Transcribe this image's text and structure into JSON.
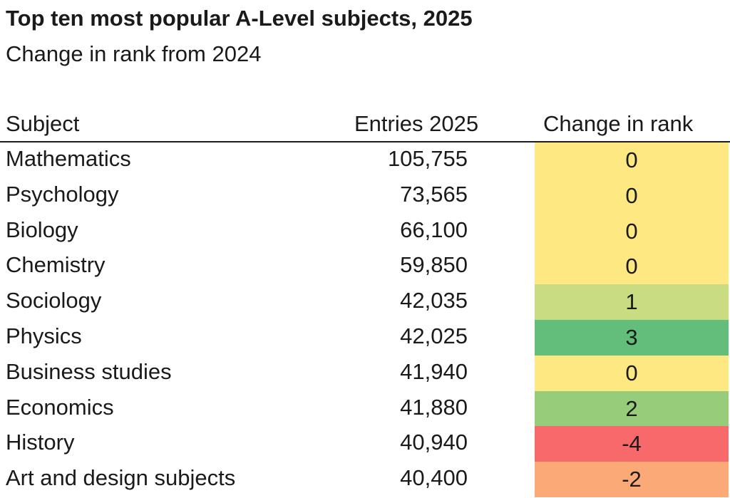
{
  "title": "Top ten most popular A-Level subjects, 2025",
  "subtitle": "Change in rank from 2024",
  "colors": {
    "zero": "#fde882",
    "plus1": "#cadc82",
    "plus2": "#97cd7a",
    "plus3": "#63be7b",
    "minus2": "#fbaa77",
    "minus4": "#f8696b"
  },
  "chart_data": {
    "type": "table",
    "columns": [
      "Subject",
      "Entries 2025",
      "Change in rank"
    ],
    "rows": [
      {
        "subject": "Mathematics",
        "entries": "105,755",
        "change": "0",
        "color": "#fde882"
      },
      {
        "subject": "Psychology",
        "entries": "73,565",
        "change": "0",
        "color": "#fde882"
      },
      {
        "subject": "Biology",
        "entries": "66,100",
        "change": "0",
        "color": "#fde882"
      },
      {
        "subject": "Chemistry",
        "entries": "59,850",
        "change": "0",
        "color": "#fde882"
      },
      {
        "subject": "Sociology",
        "entries": "42,035",
        "change": "1",
        "color": "#cadc82"
      },
      {
        "subject": "Physics",
        "entries": "42,025",
        "change": "3",
        "color": "#63be7b"
      },
      {
        "subject": "Business studies",
        "entries": "41,940",
        "change": "0",
        "color": "#fde882"
      },
      {
        "subject": "Economics",
        "entries": "41,880",
        "change": "2",
        "color": "#97cd7a"
      },
      {
        "subject": "History",
        "entries": "40,940",
        "change": "-4",
        "color": "#f8696b"
      },
      {
        "subject": "Art and design subjects",
        "entries": "40,400",
        "change": "-2",
        "color": "#fbaa77"
      }
    ]
  }
}
